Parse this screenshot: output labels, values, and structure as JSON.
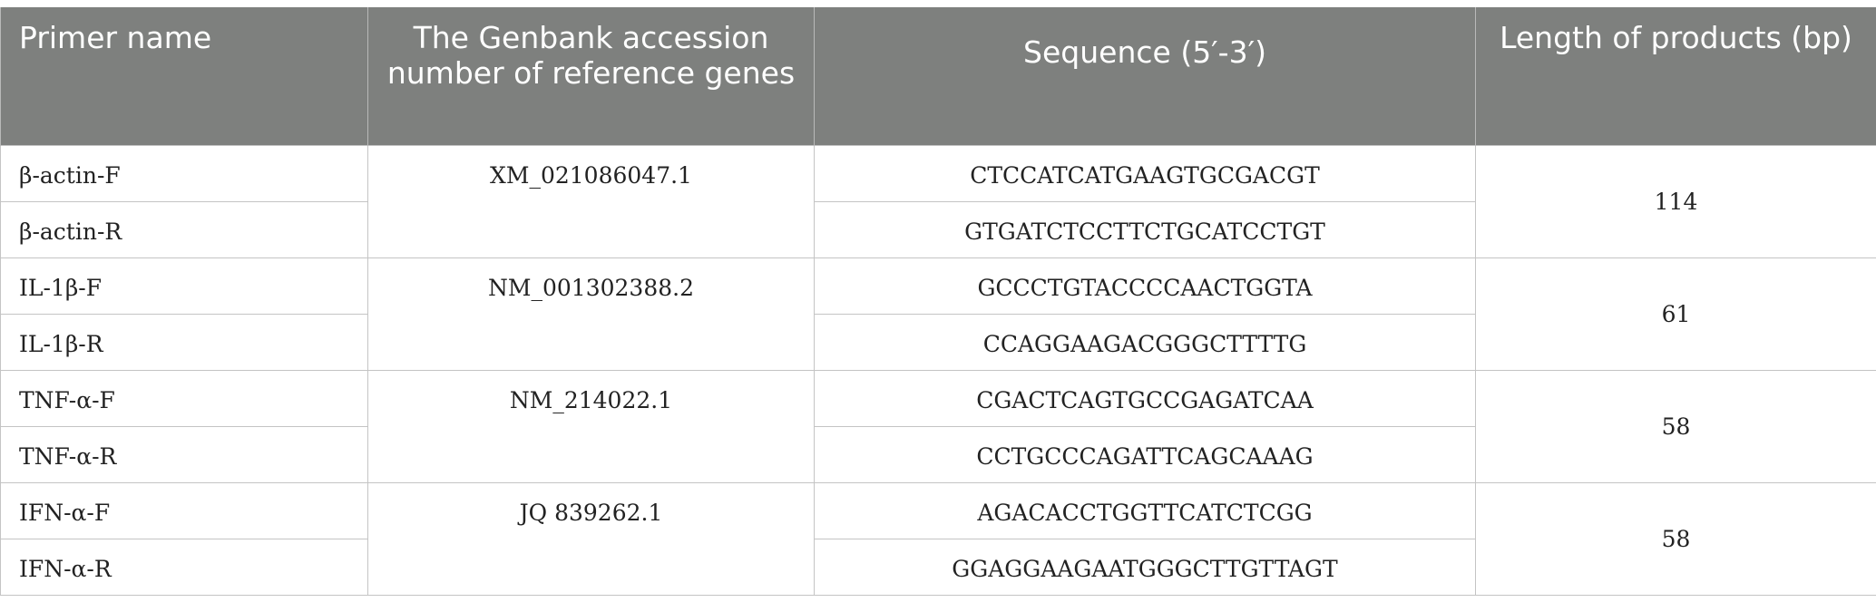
{
  "table": {
    "headers": [
      "Primer name",
      "The Genbank accession number of reference genes",
      "Sequence (5′-3′)",
      "Length of products (bp)"
    ],
    "groups": [
      {
        "accession": "XM_021086047.1",
        "length": "114",
        "rows": [
          {
            "name": "β-actin-F",
            "sequence": "CTCCATCATGAAGTGCGACGT"
          },
          {
            "name": "β-actin-R",
            "sequence": "GTGATCTCCTTCTGCATCCTGT"
          }
        ]
      },
      {
        "accession": "NM_001302388.2",
        "length": "61",
        "rows": [
          {
            "name": "IL-1β-F",
            "sequence": "GCCCTGTACCCCAACTGGTA"
          },
          {
            "name": "IL-1β-R",
            "sequence": "CCAGGAAGACGGGCTTTTG"
          }
        ]
      },
      {
        "accession": "NM_214022.1",
        "length": "58",
        "rows": [
          {
            "name": "TNF-α-F",
            "sequence": "CGACTCAGTGCCGAGATCAA"
          },
          {
            "name": "TNF-α-R",
            "sequence": "CCTGCCCAGATTCAGCAAAG"
          }
        ]
      },
      {
        "accession": "JQ 839262.1",
        "length": "58",
        "rows": [
          {
            "name": "IFN-α-F",
            "sequence": "AGACACCTGGTTCATCTCGG"
          },
          {
            "name": "IFN-α-R",
            "sequence": "GGAGGAAGAATGGGCTTGTTAGT"
          }
        ]
      }
    ]
  }
}
